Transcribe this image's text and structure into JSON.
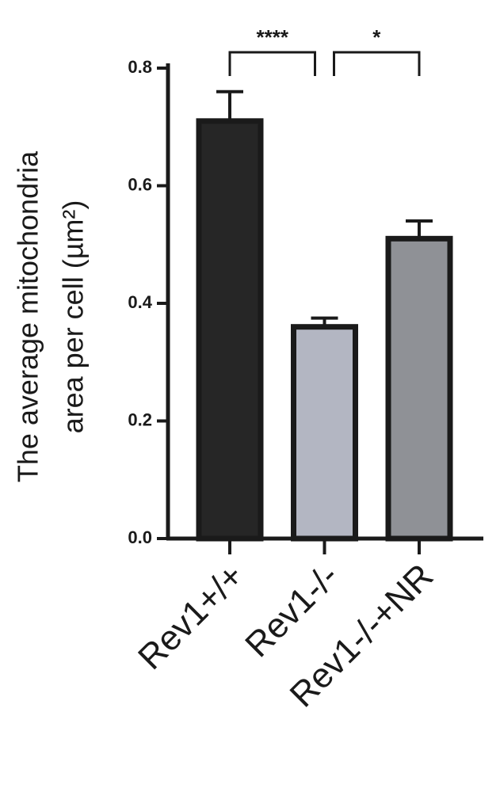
{
  "chart_data": {
    "type": "bar",
    "ylabel": [
      "The average mitochondria",
      "area per cell (µm²)"
    ],
    "categories": [
      "Rev1+/+",
      "Rev1-/-",
      "Rev1-/-+NR"
    ],
    "values": [
      0.71,
      0.36,
      0.51
    ],
    "errors": [
      0.05,
      0.015,
      0.03
    ],
    "colors": [
      "#262626",
      "#b3b6c2",
      "#8f9196"
    ],
    "ylim": [
      0,
      0.8
    ],
    "yticks": [
      {
        "value": 0,
        "label": "0.0"
      },
      0.2,
      0.4,
      0.6,
      0.8
    ],
    "comparisons": [
      {
        "groups": [
          "Rev1+/+",
          "Rev1-/-"
        ],
        "label": "****"
      },
      {
        "groups": [
          "Rev1-/-",
          "Rev1-/-+NR"
        ],
        "label": "*"
      }
    ]
  }
}
